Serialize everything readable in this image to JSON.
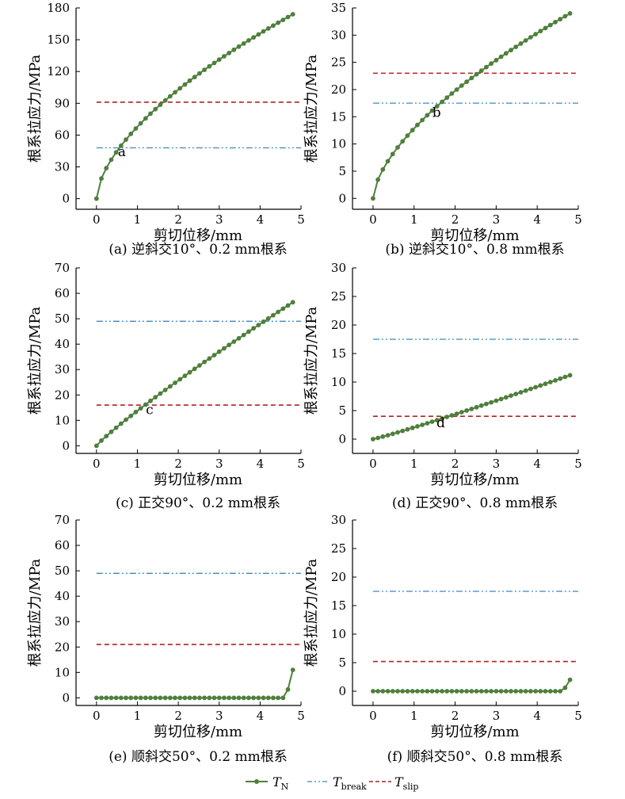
{
  "colors": {
    "tn": "#4f7f3c",
    "break": "#3b88c4",
    "slip": "#b22222",
    "axis": "#000000"
  },
  "legend": {
    "items": [
      {
        "key": "tn",
        "symbol": "T",
        "sub": "N",
        "style": "line-marker"
      },
      {
        "key": "break",
        "symbol": "T",
        "sub": "break",
        "style": "dashdotdot"
      },
      {
        "key": "slip",
        "symbol": "T",
        "sub": "slip",
        "style": "dashed"
      }
    ]
  },
  "chart_data": [
    {
      "type": "line",
      "caption": "(a) 逆斜交10°、0.2 mm根系",
      "xlabel": "剪切位移/mm",
      "ylabel": "根系拉应力/MPa",
      "xlim": [
        -0.5,
        5
      ],
      "ylim": [
        -10,
        180
      ],
      "xticks": [
        0,
        1,
        2,
        3,
        4,
        5
      ],
      "yticks": [
        0,
        30,
        60,
        90,
        120,
        150,
        180
      ],
      "tn_curve": {
        "model": "power",
        "x_max": 4.8,
        "n_points": 41,
        "y_at_max": 174,
        "exponent": 0.6
      },
      "thresholds": {
        "break": 48,
        "slip": 91
      },
      "annotation": {
        "text": "a",
        "x": 0.62,
        "y": 40
      }
    },
    {
      "type": "line",
      "caption": "(b) 逆斜交10°、0.8 mm根系",
      "xlabel": "剪切位移/mm",
      "ylabel": "根系拉应力/MPa",
      "xlim": [
        -0.5,
        5
      ],
      "ylim": [
        -2,
        35
      ],
      "xticks": [
        0,
        1,
        2,
        3,
        4,
        5
      ],
      "yticks": [
        0,
        5,
        10,
        15,
        20,
        25,
        30,
        35
      ],
      "tn_curve": {
        "model": "power",
        "x_max": 4.8,
        "n_points": 41,
        "y_at_max": 34,
        "exponent": 0.62
      },
      "thresholds": {
        "break": 17.5,
        "slip": 23
      },
      "annotation": {
        "text": "b",
        "x": 1.55,
        "y": 15
      }
    },
    {
      "type": "line",
      "caption": "(c) 正交90°、0.2 mm根系",
      "xlabel": "剪切位移/mm",
      "ylabel": "根系拉应力/MPa",
      "xlim": [
        -0.5,
        5
      ],
      "ylim": [
        -3,
        70
      ],
      "xticks": [
        0,
        1,
        2,
        3,
        4,
        5
      ],
      "yticks": [
        0,
        10,
        20,
        30,
        40,
        50,
        60,
        70
      ],
      "tn_curve": {
        "model": "power",
        "x_max": 4.8,
        "n_points": 41,
        "y_at_max": 56.5,
        "exponent": 0.9
      },
      "thresholds": {
        "break": 49,
        "slip": 16
      },
      "annotation": {
        "text": "c",
        "x": 1.3,
        "y": 12.5
      }
    },
    {
      "type": "line",
      "caption": "(d) 正交90°、0.8 mm根系",
      "xlabel": "剪切位移/mm",
      "ylabel": "根系拉应力/MPa",
      "xlim": [
        -0.5,
        5
      ],
      "ylim": [
        -2.5,
        30
      ],
      "xticks": [
        0,
        1,
        2,
        3,
        4,
        5
      ],
      "yticks": [
        0,
        5,
        10,
        15,
        20,
        25,
        30
      ],
      "tn_curve": {
        "model": "power",
        "x_max": 4.8,
        "n_points": 41,
        "y_at_max": 11.2,
        "exponent": 1.08
      },
      "thresholds": {
        "break": 17.5,
        "slip": 4
      },
      "annotation": {
        "text": "d",
        "x": 1.65,
        "y": 2.1
      }
    },
    {
      "type": "line",
      "caption": "(e) 顺斜交50°、0.2 mm根系",
      "xlabel": "剪切位移/mm",
      "ylabel": "根系拉应力/MPa",
      "xlim": [
        -0.5,
        5
      ],
      "ylim": [
        -3,
        70
      ],
      "xticks": [
        0,
        1,
        2,
        3,
        4,
        5
      ],
      "yticks": [
        0,
        10,
        20,
        30,
        40,
        50,
        60,
        70
      ],
      "tn_curve": {
        "model": "flat-then-rise",
        "x_max": 4.8,
        "n_points": 41,
        "tail": [
          [
            4.56,
            0
          ],
          [
            4.68,
            3.3
          ],
          [
            4.8,
            11
          ]
        ]
      },
      "thresholds": {
        "break": 49,
        "slip": 21
      },
      "annotation": null
    },
    {
      "type": "line",
      "caption": "(f) 顺斜交50°、0.8 mm根系",
      "xlabel": "剪切位移/mm",
      "ylabel": "根系拉应力/MPa",
      "xlim": [
        -0.5,
        5
      ],
      "ylim": [
        -2.5,
        30
      ],
      "xticks": [
        0,
        1,
        2,
        3,
        4,
        5
      ],
      "yticks": [
        0,
        5,
        10,
        15,
        20,
        25,
        30
      ],
      "tn_curve": {
        "model": "flat-then-rise",
        "x_max": 4.8,
        "n_points": 41,
        "tail": [
          [
            4.56,
            0
          ],
          [
            4.68,
            0.6
          ],
          [
            4.8,
            2
          ]
        ]
      },
      "thresholds": {
        "break": 17.5,
        "slip": 5.2
      },
      "annotation": null
    }
  ]
}
